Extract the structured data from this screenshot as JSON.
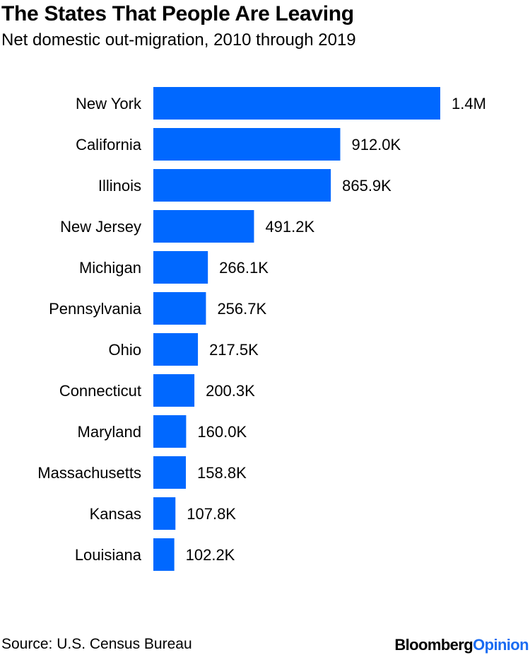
{
  "chart_data": {
    "type": "bar",
    "orientation": "horizontal",
    "title": "The States That People Are Leaving",
    "subtitle": "Net domestic out-migration, 2010 through 2019",
    "categories": [
      "New York",
      "California",
      "Illinois",
      "New Jersey",
      "Michigan",
      "Pennsylvania",
      "Ohio",
      "Connecticut",
      "Maryland",
      "Massachusetts",
      "Kansas",
      "Louisiana"
    ],
    "values": [
      1400000,
      912000,
      865900,
      491200,
      266100,
      256700,
      217500,
      200300,
      160000,
      158800,
      107800,
      102200
    ],
    "value_labels": [
      "1.4M",
      "912.0K",
      "865.9K",
      "491.2K",
      "266.1K",
      "256.7K",
      "217.5K",
      "200.3K",
      "160.0K",
      "158.8K",
      "107.8K",
      "102.2K"
    ],
    "xlim": [
      0,
      1400000
    ],
    "grid": false,
    "legend": "none",
    "bar_color": "#0068ff"
  },
  "footer": {
    "source": "Source: U.S. Census Bureau",
    "brand_primary": "Bloomberg",
    "brand_secondary": "Opinion"
  }
}
